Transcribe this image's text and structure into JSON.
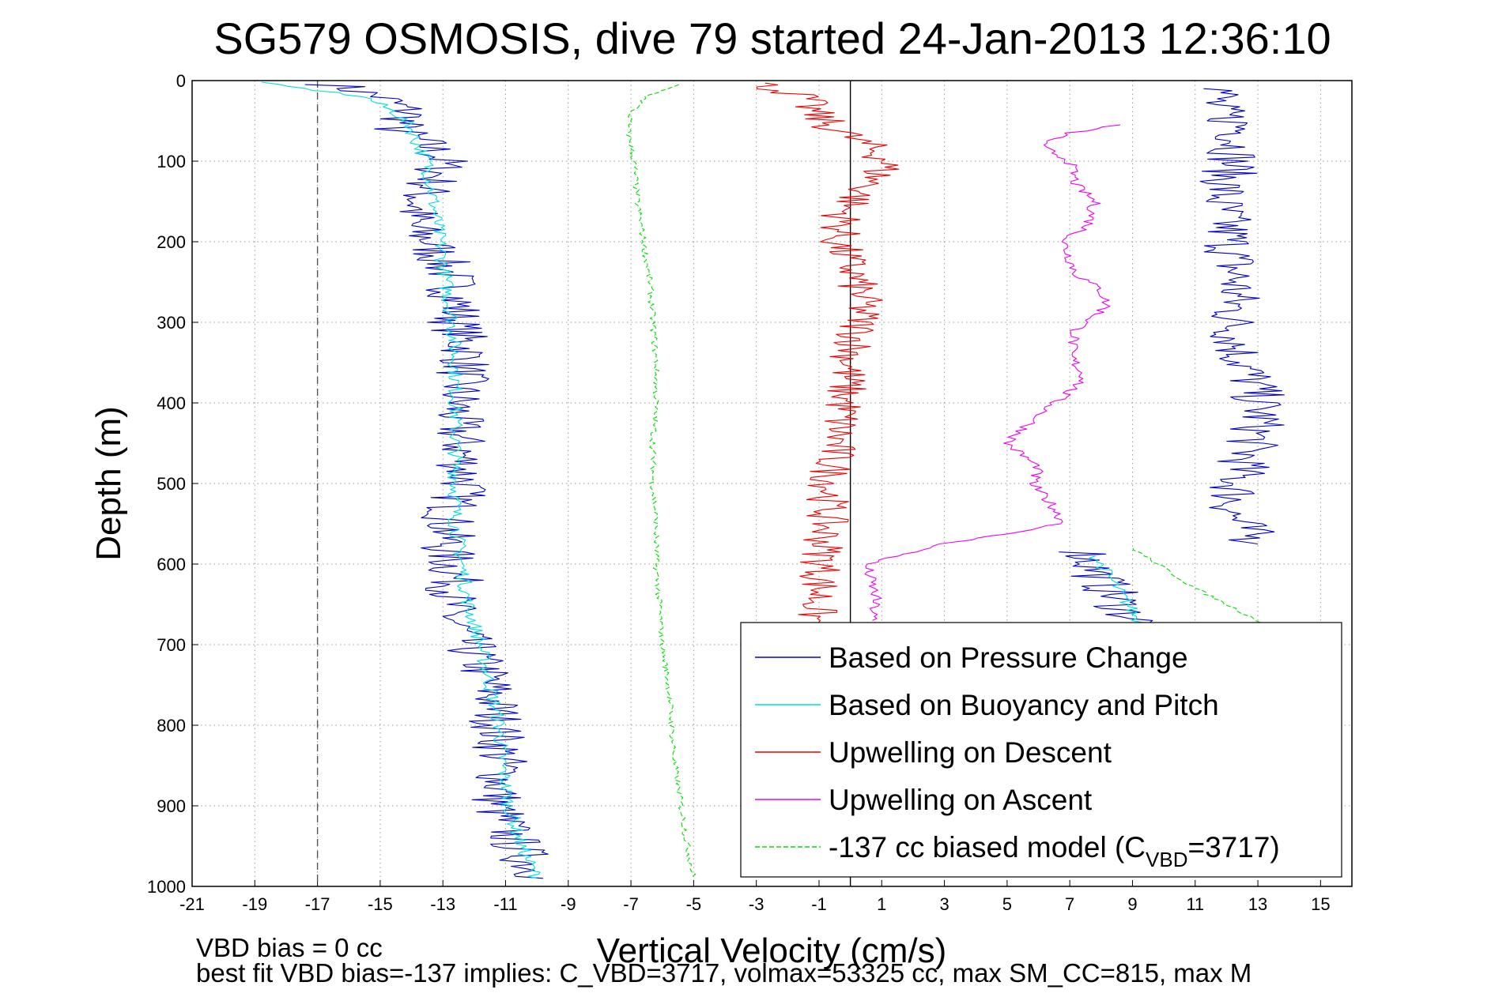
{
  "chart_data": {
    "type": "line",
    "title": "SG579 OSMOSIS, dive 79 started 24-Jan-2013 12:36:10",
    "xlabel": "Vertical Velocity (cm/s)",
    "ylabel": "Depth (m)",
    "xlim": [
      -21,
      16
    ],
    "ylim": [
      1000,
      0
    ],
    "y_reversed": true,
    "grid": true,
    "xticks": [
      -21,
      -19,
      -17,
      -15,
      -13,
      -11,
      -9,
      -7,
      -5,
      -3,
      -1,
      1,
      3,
      5,
      7,
      9,
      11,
      13,
      15
    ],
    "yticks": [
      0,
      100,
      200,
      300,
      400,
      500,
      600,
      700,
      800,
      900,
      1000
    ],
    "reference_lines": [
      {
        "x": -17,
        "style": "dashed",
        "color": "#555555"
      },
      {
        "x": 0,
        "style": "solid",
        "color": "#000000"
      }
    ],
    "legend_position": "bottom-right",
    "series": [
      {
        "name": "Based on Pressure Change",
        "color": "#0000cc",
        "style": "solid",
        "jitter": 0.9,
        "segments": [
          {
            "depth": [
              5,
              20,
              40,
              60,
              80,
              100,
              120,
              150,
              180,
              200,
              240,
              280,
              300,
              340,
              380,
              420,
              460,
              500,
              540,
              580,
              620,
              660,
              700,
              740,
              780,
              820,
              860,
              900,
              940,
              970,
              990
            ],
            "velocity": [
              -16.5,
              -15,
              -14,
              -14.5,
              -13.5,
              -13,
              -13.2,
              -13.8,
              -14,
              -13.4,
              -12.8,
              -12.5,
              -12.6,
              -12.2,
              -12.5,
              -12.6,
              -12.4,
              -12.3,
              -12.8,
              -12.9,
              -12.6,
              -12.8,
              -12.2,
              -11.6,
              -11.3,
              -11.2,
              -11.1,
              -11.3,
              -10.8,
              -10.3,
              -9.8
            ]
          },
          {
            "depth": [
              10,
              30,
              60,
              100,
              150,
              200,
              250,
              300,
              340,
              380,
              420,
              460,
              500,
              540,
              575
            ],
            "velocity": [
              12,
              11.5,
              12.5,
              12.2,
              11.8,
              12.1,
              12.3,
              12.2,
              12.4,
              12.9,
              13.1,
              12.7,
              12.3,
              12.2,
              13
            ]
          },
          {
            "depth": [
              585,
              620,
              660,
              680
            ],
            "velocity": [
              7.5,
              8,
              8.8,
              9.5
            ]
          }
        ]
      },
      {
        "name": "Based on Buoyancy and Pitch",
        "color": "#00dddd",
        "style": "solid",
        "jitter": 0.25,
        "segments": [
          {
            "depth": [
              2,
              20,
              40,
              60,
              80,
              100,
              150,
              200,
              250,
              300,
              350,
              400,
              450,
              500,
              550,
              600,
              650,
              700,
              750,
              800,
              850,
              900,
              950,
              990
            ],
            "velocity": [
              -19,
              -15.5,
              -14.5,
              -14,
              -13.8,
              -13.5,
              -13.3,
              -13.1,
              -12.9,
              -12.7,
              -12.6,
              -12.6,
              -12.6,
              -12.6,
              -12.6,
              -12.4,
              -12.2,
              -11.8,
              -11.5,
              -11.2,
              -11.1,
              -10.9,
              -10.5,
              -10
            ]
          },
          {
            "depth": [
              590,
              630,
              670,
              690
            ],
            "velocity": [
              7.8,
              8.5,
              9.2,
              9.6
            ]
          }
        ]
      },
      {
        "name": "Upwelling on Descent",
        "color": "#ee0000",
        "style": "solid",
        "jitter": 0.7,
        "segments": [
          {
            "depth": [
              3,
              20,
              40,
              60,
              80,
              100,
              130,
              160,
              200,
              240,
              280,
              320,
              360,
              400,
              440,
              480,
              520,
              560,
              600,
              640,
              680
            ],
            "velocity": [
              -3,
              -1.5,
              -1.2,
              -0.5,
              0.5,
              1.2,
              0.6,
              -0.2,
              -0.4,
              0.1,
              0.4,
              0.2,
              -0.1,
              -0.2,
              -0.4,
              -0.6,
              -0.7,
              -0.8,
              -0.9,
              -1,
              -1.2
            ]
          }
        ]
      },
      {
        "name": "Upwelling on Ascent",
        "color": "#ee00ee",
        "style": "solid",
        "jitter": 0.2,
        "segments": [
          {
            "depth": [
              55,
              65,
              80,
              100,
              130,
              150,
              180,
              200,
              240,
              260,
              280,
              310,
              340,
              370,
              400,
              450,
              480,
              500,
              530,
              550,
              575,
              600,
              640,
              670
            ],
            "velocity": [
              8.5,
              7,
              6,
              7,
              7.2,
              7.8,
              7.6,
              6.8,
              7.2,
              8,
              8.2,
              7.2,
              7,
              7.5,
              6.5,
              5,
              6,
              5.8,
              6.5,
              6.8,
              3,
              0.5,
              0.8,
              0.7
            ]
          }
        ]
      },
      {
        "name": "-137 cc biased model (C<sub>VBD</sub>=3717)",
        "color": "#00dd00",
        "style": "dashed",
        "jitter": 0.1,
        "segments": [
          {
            "depth": [
              5,
              20,
              40,
              60,
              80,
              100,
              150,
              200,
              250,
              300,
              350,
              400,
              450,
              500,
              550,
              600,
              650,
              700,
              750,
              800,
              850,
              900,
              950,
              990
            ],
            "velocity": [
              -5.5,
              -6.5,
              -7,
              -7.1,
              -7,
              -6.9,
              -6.8,
              -6.6,
              -6.4,
              -6.3,
              -6.2,
              -6.2,
              -6.3,
              -6.3,
              -6.2,
              -6.2,
              -6.1,
              -6,
              -5.8,
              -5.7,
              -5.6,
              -5.4,
              -5.2,
              -5
            ]
          },
          {
            "depth": [
              580,
              600,
              630,
              660,
              680
            ],
            "velocity": [
              9,
              9.8,
              11,
              12.5,
              13.5
            ]
          }
        ]
      }
    ],
    "legend_entries": [
      {
        "label": "Based on Pressure Change",
        "color": "#0000cc",
        "style": "solid"
      },
      {
        "label": "Based on Buoyancy and Pitch",
        "color": "#00dddd",
        "style": "solid"
      },
      {
        "label": "Upwelling on Descent",
        "color": "#ee0000",
        "style": "solid"
      },
      {
        "label": "Upwelling on Ascent",
        "color": "#ee00ee",
        "style": "solid"
      },
      {
        "label_prefix": "-137 cc biased model (C",
        "label_sub": "VBD",
        "label_suffix": "=3717)",
        "color": "#00dd00",
        "style": "dashed"
      }
    ],
    "annotations": [
      "VBD bias = 0 cc",
      "best fit VBD bias=-137 implies: C_VBD=3717, volmax=53325 cc, max SM_CC=815, max M"
    ]
  }
}
